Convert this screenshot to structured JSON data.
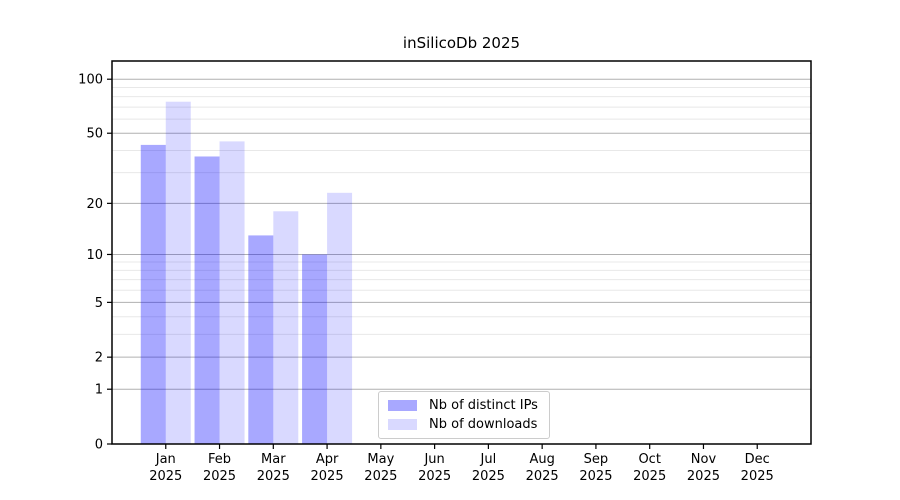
{
  "chart_data": {
    "type": "bar",
    "title": "inSilicoDb 2025",
    "categories": [
      "Jan",
      "Feb",
      "Mar",
      "Apr",
      "May",
      "Jun",
      "Jul",
      "Aug",
      "Sep",
      "Oct",
      "Nov",
      "Dec"
    ],
    "category_year": "2025",
    "series": [
      {
        "name": "Nb of distinct IPs",
        "color": "rgba(0,0,255,0.34)",
        "values": [
          43,
          37,
          13,
          10,
          null,
          null,
          null,
          null,
          null,
          null,
          null,
          null
        ]
      },
      {
        "name": "Nb of downloads",
        "color": "rgba(0,0,255,0.15)",
        "values": [
          75,
          45,
          18,
          23,
          null,
          null,
          null,
          null,
          null,
          null,
          null,
          null
        ]
      }
    ],
    "yscale": "log1p",
    "yticks": [
      0,
      1,
      2,
      5,
      10,
      20,
      50,
      100
    ],
    "minor_yticks": [
      3,
      4,
      6,
      7,
      8,
      9,
      30,
      40,
      60,
      70,
      80,
      90
    ],
    "ylim": [
      0,
      126
    ],
    "xlabel": "",
    "ylabel": "",
    "grid": {
      "major_color": "#b0b0b0",
      "minor_color": "#e8e8e8"
    },
    "axis_color": "#000000",
    "tick_label_color": "#000000",
    "legend_position": "lower center"
  }
}
